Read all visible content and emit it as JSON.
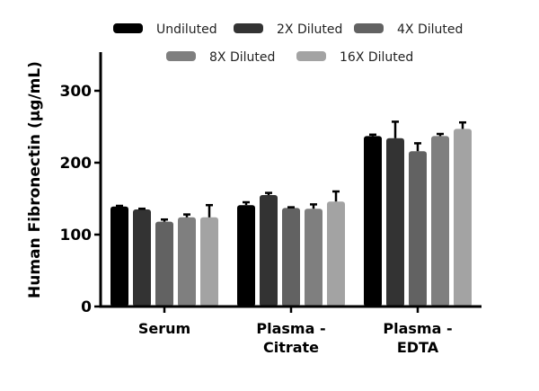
{
  "chart_data": {
    "type": "bar",
    "title": "",
    "xlabel": "",
    "ylabel": "Human Fibronectin (μg/mL)",
    "ylim": [
      0,
      350
    ],
    "yticks": [
      0,
      100,
      200,
      300
    ],
    "grid": false,
    "legend_placement": "top",
    "categories": [
      "Serum",
      "Plasma - Citrate",
      "Plasma - EDTA"
    ],
    "series": [
      {
        "name": "Undiluted",
        "color": "#000000",
        "values": [
          139,
          141,
          237
        ],
        "errors": [
          1,
          4,
          2
        ]
      },
      {
        "name": "2X Diluted",
        "color": "#333333",
        "values": [
          135,
          155,
          234
        ],
        "errors": [
          1,
          3,
          23
        ]
      },
      {
        "name": "4X Diluted",
        "color": "#626262",
        "values": [
          118,
          137,
          216
        ],
        "errors": [
          3,
          1,
          11
        ]
      },
      {
        "name": "8X Diluted",
        "color": "#7f7f7f",
        "values": [
          124,
          136,
          237
        ],
        "errors": [
          4,
          6,
          3
        ]
      },
      {
        "name": "16X Diluted",
        "color": "#a3a3a3",
        "values": [
          124,
          146,
          247
        ],
        "errors": [
          17,
          14,
          9
        ]
      }
    ]
  }
}
